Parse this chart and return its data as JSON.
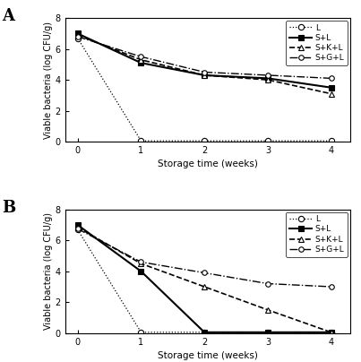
{
  "x": [
    0,
    1,
    2,
    3,
    4
  ],
  "panel_A": {
    "L": [
      6.7,
      0.05,
      0.05,
      0.05,
      0.05
    ],
    "S+L": [
      7.0,
      5.1,
      4.3,
      4.1,
      3.5
    ],
    "S+K+L": [
      6.9,
      5.3,
      4.3,
      4.0,
      3.1
    ],
    "S+G+L": [
      6.8,
      5.5,
      4.5,
      4.3,
      4.1
    ]
  },
  "panel_B": {
    "L": [
      6.7,
      0.05,
      0.05,
      0.05,
      0.05
    ],
    "S+L": [
      7.0,
      4.0,
      0.05,
      0.05,
      0.05
    ],
    "S+K+L": [
      6.85,
      4.5,
      3.0,
      1.5,
      0.05
    ],
    "S+G+L": [
      6.75,
      4.6,
      3.9,
      3.2,
      3.0
    ]
  },
  "xlabel": "Storage time (weeks)",
  "ylabel": "Viable bacteria (log CFU/g)",
  "ylim": [
    0,
    8
  ],
  "yticks": [
    0,
    2,
    4,
    6,
    8
  ],
  "xticks": [
    0,
    1,
    2,
    3,
    4
  ],
  "label_A": "A",
  "label_B": "B",
  "legend_labels": [
    "L",
    "S+L",
    "S+K+L",
    "S+G+L"
  ]
}
